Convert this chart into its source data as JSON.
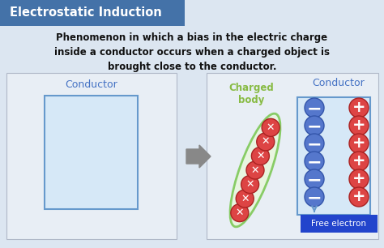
{
  "title": "Electrostatic Induction",
  "title_bg": "#4472a8",
  "title_color": "#ffffff",
  "body_bg": "#dce6f1",
  "panel_bg": "#e8eef5",
  "panel_edge": "#b0b8c8",
  "conductor_box_fill": "#d6e8f7",
  "conductor_box_edge": "#6699cc",
  "conductor_label_color": "#4472c4",
  "charged_body_fill": "#e8f5e0",
  "charged_body_edge": "#88cc66",
  "charged_body_label_color": "#88bb44",
  "neg_fill": "#5577cc",
  "neg_edge": "#3355aa",
  "neg_text": "#ffffff",
  "pos_fill": "#dd4444",
  "pos_edge": "#aa2222",
  "pos_text": "#ffffff",
  "xmark_color": "#ffffff",
  "free_electron_bg": "#2244cc",
  "free_electron_color": "#ffffff",
  "arrow_color": "#888888",
  "desc_color": "#111111",
  "desc_text": "Phenomenon in which a bias in the electric charge\ninside a conductor occurs when a charged object is\nbrought close to the conductor."
}
